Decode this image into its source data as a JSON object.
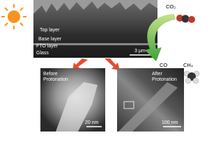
{
  "sem": {
    "layers": [
      "Top layer",
      "Base layer",
      "FTO layer",
      "Glass"
    ],
    "scale": "3 μm"
  },
  "molecules": {
    "reactant": "CO₂",
    "products": [
      "CO",
      "CH₄"
    ]
  },
  "panels": [
    {
      "title": [
        "Before",
        "Protonation"
      ],
      "scale": "20 nm"
    },
    {
      "title": [
        "After",
        "Protonation"
      ],
      "scale": "100 nm"
    }
  ]
}
